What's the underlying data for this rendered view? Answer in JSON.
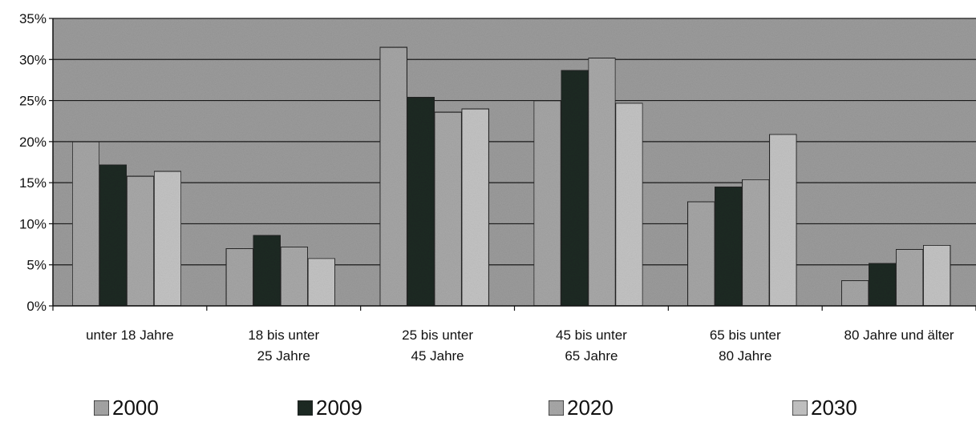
{
  "chart_data": {
    "type": "bar",
    "title": "",
    "xlabel": "",
    "ylabel": "",
    "ylim": [
      0,
      35
    ],
    "y_ticks": [
      "0%",
      "5%",
      "10%",
      "15%",
      "20%",
      "25%",
      "30%",
      "35%"
    ],
    "grid": true,
    "legend_position": "bottom",
    "categories": [
      [
        "unter 18 Jahre"
      ],
      [
        "18 bis unter",
        "25 Jahre"
      ],
      [
        "25 bis unter",
        "45 Jahre"
      ],
      [
        "45 bis unter",
        "65 Jahre"
      ],
      [
        "65 bis unter",
        "80 Jahre"
      ],
      [
        "80 Jahre und älter"
      ]
    ],
    "series": [
      {
        "name": "2000",
        "color": "#a6a6a6",
        "values": [
          20.0,
          7.0,
          31.5,
          25.0,
          12.7,
          3.1
        ]
      },
      {
        "name": "2009",
        "color": "#1f2a24",
        "values": [
          17.2,
          8.6,
          25.4,
          28.7,
          14.5,
          5.2
        ]
      },
      {
        "name": "2020",
        "color": "#a9a9a9",
        "values": [
          15.8,
          7.2,
          23.6,
          30.2,
          15.4,
          6.9
        ]
      },
      {
        "name": "2030",
        "color": "#c4c4c4",
        "values": [
          16.4,
          5.8,
          24.0,
          24.7,
          20.9,
          7.4
        ]
      }
    ],
    "plot_background": "#9c9c9c",
    "bar_outline": "#222222"
  }
}
